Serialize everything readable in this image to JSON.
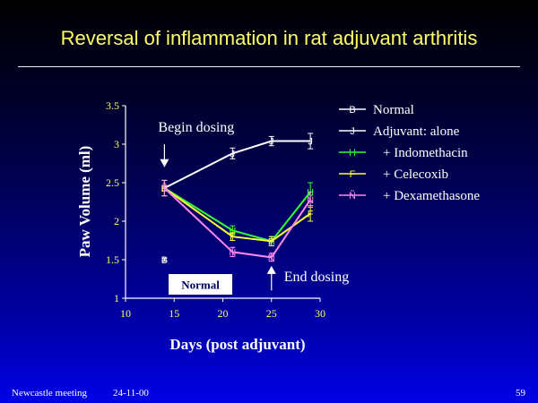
{
  "slide": {
    "title": "Reversal of inflammation in rat adjuvant arthritis",
    "footer_left": "Newcastle meeting",
    "footer_date": "24-11-00",
    "page_number": "59"
  },
  "chart_data": {
    "type": "line",
    "title": "",
    "xlabel": "Days (post adjuvant)",
    "ylabel": "Paw Volume (ml)",
    "xlim": [
      10,
      30
    ],
    "ylim": [
      1,
      3.5
    ],
    "xticks": [
      "10",
      "15",
      "20",
      "25",
      "30"
    ],
    "yticks": [
      "1",
      "1.5",
      "2",
      "2.5",
      "3",
      "3.5"
    ],
    "grid": false,
    "legend_position": "right",
    "series": [
      {
        "name": "Normal",
        "marker": "B",
        "color": "#ffffff",
        "x": [
          14
        ],
        "y": [
          1.5
        ],
        "err": [
          0.02
        ]
      },
      {
        "name": "Adjuvant: alone",
        "marker": "J",
        "color": "#ffffff",
        "x": [
          14,
          21,
          25,
          29
        ],
        "y": [
          2.43,
          2.88,
          3.04,
          3.04
        ],
        "err": [
          0.1,
          0.07,
          0.06,
          0.1
        ]
      },
      {
        "name": "+ Indomethacin",
        "marker": "H",
        "color": "#33ff33",
        "x": [
          14,
          21,
          25,
          29
        ],
        "y": [
          2.43,
          1.88,
          1.74,
          2.38
        ],
        "err": [
          0.1,
          0.06,
          0.06,
          0.12
        ]
      },
      {
        "name": "+ Celecoxib",
        "marker": "F",
        "color": "#ffff33",
        "x": [
          14,
          21,
          25,
          29
        ],
        "y": [
          2.43,
          1.8,
          1.74,
          2.1
        ],
        "err": [
          0.1,
          0.05,
          0.06,
          0.1
        ]
      },
      {
        "name": "+ Dexamethasone",
        "marker": "Ñ",
        "color": "#ff88ee",
        "x": [
          14,
          21,
          25,
          29
        ],
        "y": [
          2.43,
          1.6,
          1.53,
          2.28
        ],
        "err": [
          0.1,
          0.06,
          0.05,
          0.1
        ]
      }
    ],
    "annotations": [
      {
        "text": "Begin dosing",
        "x": 14,
        "y_from": 3.0,
        "y_to": 2.7,
        "anchor": "above"
      },
      {
        "text": "End dosing",
        "x": 25,
        "y_from": 1.1,
        "y_to": 1.42,
        "anchor": "below"
      },
      {
        "text": "Normal",
        "x": 17.7,
        "y": 1.18,
        "boxed": true
      }
    ]
  }
}
